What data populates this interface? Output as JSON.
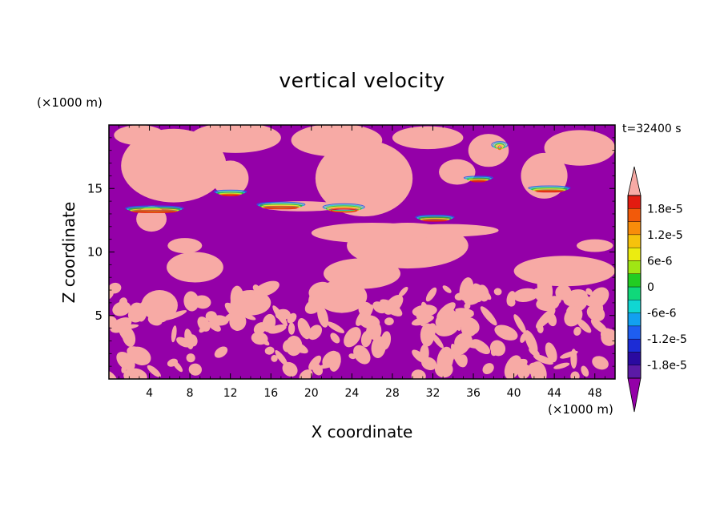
{
  "chart_data": {
    "type": "heatmap",
    "title": "vertical velocity",
    "xlabel": "X coordinate",
    "ylabel": "Z coordinate",
    "x_unit": "(×1000 m)",
    "y_unit": "(×1000 m)",
    "time_label": "t=32400 s",
    "xlim": [
      0,
      50
    ],
    "ylim": [
      0,
      20
    ],
    "xticks": [
      4,
      8,
      12,
      16,
      20,
      24,
      28,
      32,
      36,
      40,
      44,
      48
    ],
    "yticks": [
      5,
      10,
      15
    ],
    "colorbar": {
      "min": -2.1e-05,
      "max": 2.1e-05,
      "levels": [
        -2.1e-05,
        -1.8e-05,
        -1.5e-05,
        -1.2e-05,
        -9e-06,
        -6e-06,
        -3e-06,
        0,
        3e-06,
        6e-06,
        9e-06,
        1.2e-05,
        1.5e-05,
        1.8e-05,
        2.1e-05
      ],
      "colors": [
        "#5b1aa6",
        "#2a0aa0",
        "#1c2cd6",
        "#1e5ef0",
        "#12a0f0",
        "#10d6d2",
        "#10d87a",
        "#22cc22",
        "#a0e614",
        "#ecec10",
        "#f6c20c",
        "#f88c0a",
        "#f25a0a",
        "#e21b10"
      ],
      "tick_labels": [
        "1.8e-5",
        "1.2e-5",
        "6e-6",
        "0",
        "-6e-6",
        "-1.2e-5",
        "-1.8e-5"
      ],
      "tick_values": [
        1.8e-05,
        1.2e-05,
        6e-06,
        0,
        -6e-06,
        -1.2e-05,
        -1.8e-05
      ],
      "under_color": "#9400a8",
      "over_color": "#f7aaa5"
    },
    "field_colors": {
      "background": "#9400a8",
      "updraft": "#f7aaa5"
    },
    "updraft_blobs": [
      {
        "x": 6.4,
        "y": 16.8,
        "rx": 5.2,
        "ry": 2.9
      },
      {
        "x": 4.2,
        "y": 12.6,
        "rx": 1.5,
        "ry": 1.0
      },
      {
        "x": 12.0,
        "y": 15.8,
        "rx": 1.8,
        "ry": 1.4
      },
      {
        "x": 12.5,
        "y": 19.0,
        "rx": 4.5,
        "ry": 1.2
      },
      {
        "x": 3.0,
        "y": 19.2,
        "rx": 2.5,
        "ry": 0.8
      },
      {
        "x": 19.0,
        "y": 13.6,
        "rx": 4.0,
        "ry": 0.4
      },
      {
        "x": 25.2,
        "y": 15.8,
        "rx": 4.8,
        "ry": 3.0
      },
      {
        "x": 22.5,
        "y": 18.8,
        "rx": 4.5,
        "ry": 1.3
      },
      {
        "x": 31.5,
        "y": 19.0,
        "rx": 3.5,
        "ry": 0.9
      },
      {
        "x": 34.4,
        "y": 16.3,
        "rx": 1.8,
        "ry": 1.0
      },
      {
        "x": 37.5,
        "y": 18.0,
        "rx": 2.0,
        "ry": 1.3
      },
      {
        "x": 43.0,
        "y": 16.0,
        "rx": 2.3,
        "ry": 1.8
      },
      {
        "x": 46.5,
        "y": 18.2,
        "rx": 3.5,
        "ry": 1.4
      },
      {
        "x": 29.5,
        "y": 10.5,
        "rx": 6.0,
        "ry": 1.8
      },
      {
        "x": 26.0,
        "y": 11.5,
        "rx": 6.0,
        "ry": 0.8
      },
      {
        "x": 33.5,
        "y": 11.7,
        "rx": 5.0,
        "ry": 0.5
      },
      {
        "x": 25.0,
        "y": 8.3,
        "rx": 3.8,
        "ry": 1.2
      },
      {
        "x": 8.5,
        "y": 8.8,
        "rx": 2.8,
        "ry": 1.2
      },
      {
        "x": 7.5,
        "y": 10.5,
        "rx": 1.7,
        "ry": 0.6
      },
      {
        "x": 45.0,
        "y": 8.5,
        "rx": 5.0,
        "ry": 1.2
      },
      {
        "x": 48.0,
        "y": 10.5,
        "rx": 1.8,
        "ry": 0.5
      },
      {
        "x": 5.0,
        "y": 5.8,
        "rx": 1.8,
        "ry": 1.2
      },
      {
        "x": 14.0,
        "y": 6.0,
        "rx": 2.0,
        "ry": 1.0
      },
      {
        "x": 23.0,
        "y": 6.5,
        "rx": 2.5,
        "ry": 1.3
      }
    ]
  }
}
